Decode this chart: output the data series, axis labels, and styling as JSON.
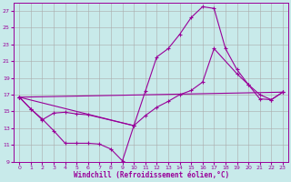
{
  "xlabel": "Windchill (Refroidissement éolien,°C)",
  "bg_color": "#c8eaea",
  "line_color": "#990099",
  "grid_color": "#aaaaaa",
  "xlim": [
    -0.5,
    23.5
  ],
  "ylim": [
    9,
    28
  ],
  "xticks": [
    0,
    1,
    2,
    3,
    4,
    5,
    6,
    7,
    8,
    9,
    10,
    11,
    12,
    13,
    14,
    15,
    16,
    17,
    18,
    19,
    20,
    21,
    22,
    23
  ],
  "yticks": [
    9,
    11,
    13,
    15,
    17,
    19,
    21,
    23,
    25,
    27
  ],
  "series": [
    {
      "x": [
        0,
        1,
        2,
        3,
        4,
        5,
        6,
        7,
        8,
        9,
        10
      ],
      "y": [
        16.7,
        15.3,
        14.1,
        12.7,
        11.2,
        11.2,
        11.2,
        11.1,
        10.5,
        9.1,
        13.3
      ]
    },
    {
      "x": [
        0,
        1,
        2,
        3,
        4,
        5,
        6,
        10,
        11,
        12,
        13,
        14,
        15,
        16,
        17,
        18,
        19,
        20,
        21,
        22,
        23
      ],
      "y": [
        16.7,
        15.3,
        14.0,
        14.8,
        14.9,
        14.7,
        14.6,
        13.3,
        17.4,
        21.5,
        22.5,
        24.2,
        26.2,
        27.5,
        27.3,
        22.5,
        20.0,
        18.2,
        16.5,
        16.4,
        17.3
      ]
    },
    {
      "x": [
        0,
        23
      ],
      "y": [
        16.7,
        17.3
      ]
    },
    {
      "x": [
        0,
        10,
        11,
        12,
        13,
        14,
        15,
        16,
        17,
        19,
        20,
        21,
        22,
        23
      ],
      "y": [
        16.7,
        13.3,
        14.5,
        15.5,
        16.2,
        17.0,
        17.5,
        18.5,
        22.5,
        19.5,
        18.2,
        17.0,
        16.4,
        17.3
      ]
    }
  ]
}
